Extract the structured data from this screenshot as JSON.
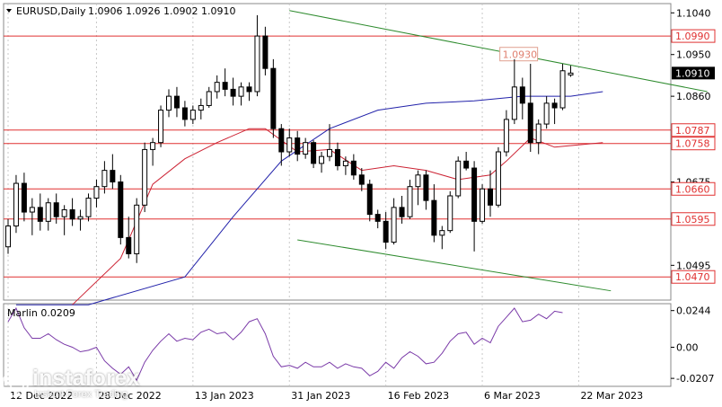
{
  "header": {
    "symbol_tf": "EURUSD,Daily",
    "ohlc": "1.0906 1.0926 1.0902 1.0910"
  },
  "indicator": {
    "title": "Marlin 0.0209"
  },
  "watermark": {
    "brand": "instaforex",
    "sub": "Instant Forex Trading"
  },
  "colors": {
    "bull": "#ffffff",
    "bear": "#000000",
    "wick": "#000000",
    "level": "#e03030",
    "trend": "#2e8b2e",
    "ma_slow": "#2222aa",
    "ma_fast": "#cc2233",
    "osc": "#7a3aa8",
    "grid": "#c8c8c8"
  },
  "chart_data": {
    "type": "candlestick",
    "title": "EURUSD,Daily 1.0906 1.0926 1.0902 1.0910",
    "ylim": [
      1.042,
      1.106
    ],
    "price_ticks": [
      "1.1040",
      "1.0950",
      "1.0860",
      "1.0675",
      "1.0495"
    ],
    "level_labels": [
      "1.0990",
      "1.0787",
      "1.0758",
      "1.0660",
      "1.0595",
      "1.0470"
    ],
    "levels": [
      1.099,
      1.0787,
      1.0758,
      1.066,
      1.0595,
      1.047
    ],
    "current_price": "1.0910",
    "annotation": "1.0930",
    "x_labels": [
      "12 Dec 2022",
      "28 Dec 2022",
      "13 Jan 2023",
      "31 Jan 2023",
      "16 Feb 2023",
      "6 Mar 2023",
      "22 Mar 2023"
    ],
    "x_label_index": [
      0,
      11,
      23,
      35,
      47,
      59,
      71
    ],
    "candles": [
      [
        1.0535,
        1.0595,
        1.052,
        1.058
      ],
      [
        1.058,
        1.069,
        1.0565,
        1.0672
      ],
      [
        1.0672,
        1.0695,
        1.059,
        1.061
      ],
      [
        1.061,
        1.064,
        1.056,
        1.062
      ],
      [
        1.062,
        1.065,
        1.057,
        1.059
      ],
      [
        1.059,
        1.064,
        1.057,
        1.063
      ],
      [
        1.063,
        1.065,
        1.0585,
        1.06
      ],
      [
        1.06,
        1.0625,
        1.056,
        1.0615
      ],
      [
        1.0615,
        1.064,
        1.058,
        1.0595
      ],
      [
        1.0595,
        1.0615,
        1.057,
        1.06
      ],
      [
        1.06,
        1.065,
        1.059,
        1.064
      ],
      [
        1.064,
        1.068,
        1.062,
        1.0665
      ],
      [
        1.0665,
        1.072,
        1.065,
        1.07
      ],
      [
        1.07,
        1.0735,
        1.066,
        1.0675
      ],
      [
        1.0675,
        1.069,
        1.054,
        1.0555
      ],
      [
        1.0555,
        1.06,
        1.051,
        1.052
      ],
      [
        1.052,
        1.064,
        1.05,
        1.0625
      ],
      [
        1.0625,
        1.076,
        1.061,
        1.0745
      ],
      [
        1.0745,
        1.077,
        1.071,
        1.076
      ],
      [
        1.076,
        1.084,
        1.075,
        1.083
      ],
      [
        1.083,
        1.0875,
        1.0815,
        1.086
      ],
      [
        1.086,
        1.088,
        1.0815,
        1.0835
      ],
      [
        1.0835,
        1.085,
        1.0795,
        1.081
      ],
      [
        1.081,
        1.084,
        1.08,
        1.083
      ],
      [
        1.083,
        1.0855,
        1.081,
        1.084
      ],
      [
        1.084,
        1.088,
        1.0835,
        1.087
      ],
      [
        1.087,
        1.0905,
        1.0855,
        1.089
      ],
      [
        1.089,
        1.092,
        1.086,
        1.0875
      ],
      [
        1.0875,
        1.09,
        1.084,
        1.086
      ],
      [
        1.086,
        1.089,
        1.084,
        1.088
      ],
      [
        1.088,
        1.089,
        1.085,
        1.087
      ],
      [
        1.087,
        1.1035,
        1.086,
        1.099
      ],
      [
        1.099,
        1.101,
        1.0905,
        1.092
      ],
      [
        1.092,
        1.094,
        1.077,
        1.079
      ],
      [
        1.079,
        1.08,
        1.071,
        1.074
      ],
      [
        1.074,
        1.079,
        1.073,
        1.077
      ],
      [
        1.077,
        1.0785,
        1.072,
        1.0735
      ],
      [
        1.0735,
        1.077,
        1.0725,
        1.076
      ],
      [
        1.076,
        1.0765,
        1.0705,
        1.0715
      ],
      [
        1.0715,
        1.074,
        1.0695,
        1.073
      ],
      [
        1.073,
        1.08,
        1.072,
        1.0745
      ],
      [
        1.0745,
        1.076,
        1.07,
        1.071
      ],
      [
        1.071,
        1.073,
        1.069,
        1.072
      ],
      [
        1.072,
        1.0735,
        1.068,
        1.069
      ],
      [
        1.069,
        1.0705,
        1.0655,
        1.067
      ],
      [
        1.067,
        1.068,
        1.059,
        1.0605
      ],
      [
        1.0605,
        1.0615,
        1.0575,
        1.059
      ],
      [
        1.059,
        1.061,
        1.053,
        1.0545
      ],
      [
        1.0545,
        1.064,
        1.054,
        1.062
      ],
      [
        1.062,
        1.0645,
        1.0585,
        1.06
      ],
      [
        1.06,
        1.068,
        1.0595,
        1.0665
      ],
      [
        1.0665,
        1.07,
        1.0625,
        1.069
      ],
      [
        1.069,
        1.07,
        1.0615,
        1.0635
      ],
      [
        1.0635,
        1.067,
        1.0545,
        1.056
      ],
      [
        1.056,
        1.058,
        1.053,
        1.057
      ],
      [
        1.057,
        1.0655,
        1.0565,
        1.0645
      ],
      [
        1.0645,
        1.073,
        1.064,
        1.072
      ],
      [
        1.072,
        1.074,
        1.07,
        1.0705
      ],
      [
        1.0705,
        1.072,
        1.0525,
        1.059
      ],
      [
        1.059,
        1.067,
        1.0585,
        1.066
      ],
      [
        1.066,
        1.07,
        1.06,
        1.0625
      ],
      [
        1.0625,
        1.075,
        1.062,
        1.074
      ],
      [
        1.074,
        1.083,
        1.073,
        1.081
      ],
      [
        1.081,
        1.094,
        1.08,
        1.088
      ],
      [
        1.088,
        1.09,
        1.081,
        1.0845
      ],
      [
        1.0845,
        1.093,
        1.074,
        1.076
      ],
      [
        1.076,
        1.081,
        1.0735,
        1.08
      ],
      [
        1.08,
        1.086,
        1.079,
        1.0845
      ],
      [
        1.0845,
        1.0855,
        1.08,
        1.0835
      ],
      [
        1.0835,
        1.093,
        1.083,
        1.0915
      ],
      [
        1.0906,
        1.0926,
        1.0902,
        1.091
      ]
    ],
    "ma_slow": [
      [
        1,
        1.041
      ],
      [
        10,
        1.041
      ],
      [
        22,
        1.047
      ],
      [
        28,
        1.06
      ],
      [
        34,
        1.072
      ],
      [
        40,
        1.079
      ],
      [
        46,
        1.083
      ],
      [
        52,
        1.0845
      ],
      [
        58,
        1.085
      ],
      [
        64,
        1.086
      ],
      [
        70,
        1.086
      ],
      [
        74,
        1.087
      ]
    ],
    "ma_fast": [
      [
        8,
        1.041
      ],
      [
        14,
        1.051
      ],
      [
        18,
        1.067
      ],
      [
        22,
        1.0725
      ],
      [
        26,
        1.076
      ],
      [
        30,
        1.079
      ],
      [
        32,
        1.079
      ],
      [
        36,
        1.074
      ],
      [
        40,
        1.0745
      ],
      [
        44,
        1.07
      ],
      [
        48,
        1.071
      ],
      [
        52,
        1.07
      ],
      [
        56,
        1.068
      ],
      [
        60,
        1.069
      ],
      [
        62,
        1.072
      ],
      [
        65,
        1.077
      ],
      [
        68,
        1.075
      ],
      [
        74,
        1.076
      ]
    ],
    "upper_channel": [
      [
        35,
        1.1045
      ],
      [
        87,
        1.087
      ]
    ],
    "lower_channel": [
      [
        36,
        1.055
      ],
      [
        75,
        1.044
      ]
    ],
    "annotation_index": 67,
    "oscillator": {
      "name": "Marlin",
      "value": 0.0209,
      "ylim": [
        -0.026,
        0.029
      ],
      "ticks": [
        "0.0244",
        "0.00",
        "-0.0207"
      ],
      "values": [
        0.017,
        0.026,
        0.013,
        0.006,
        0.006,
        0.009,
        0.005,
        0.002,
        0.0,
        -0.003,
        -0.002,
        0.0,
        -0.009,
        -0.014,
        -0.018,
        -0.013,
        -0.022,
        -0.01,
        -0.002,
        0.004,
        0.009,
        0.004,
        0.006,
        0.005,
        0.01,
        0.012,
        0.009,
        0.01,
        0.005,
        0.01,
        0.017,
        0.019,
        0.009,
        -0.006,
        -0.013,
        -0.012,
        -0.014,
        -0.01,
        -0.013,
        -0.013,
        -0.01,
        -0.014,
        -0.011,
        -0.013,
        -0.014,
        -0.019,
        -0.016,
        -0.01,
        -0.014,
        -0.007,
        -0.003,
        -0.006,
        -0.011,
        -0.01,
        -0.004,
        0.004,
        0.009,
        0.01,
        0.002,
        0.006,
        0.003,
        0.014,
        0.02,
        0.026,
        0.017,
        0.018,
        0.022,
        0.019,
        0.024,
        0.023
      ]
    }
  }
}
